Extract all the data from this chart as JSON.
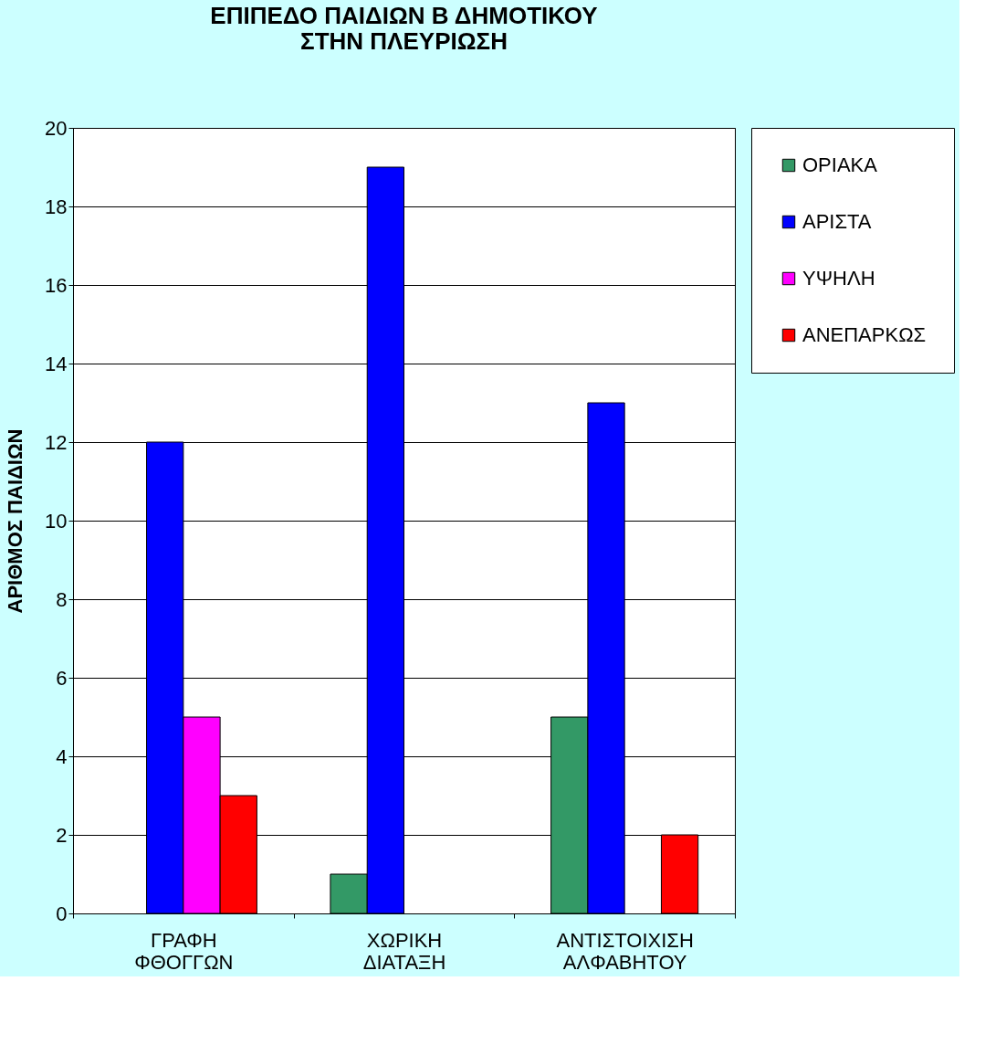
{
  "chart_data": {
    "type": "bar",
    "title": "ΕΠΙΠΕΔΟ ΠΑΙΔΙΩΝ Β ΔΗΜΟΤΙΚΟΥ\nΣΤΗΝ ΠΛΕΥΡΙΩΣΗ",
    "ylabel": "ΑΡΙΘΜΟΣ ΠΑΙΔΙΩΝ",
    "categories": [
      "ΓΡΑΦΗ ΦΘΟΓΓΩΝ",
      "ΧΩΡΙΚΗ ΔΙΑΤΑΞΗ",
      "ΑΝΤΙΣΤΟΙΧΙΣΗ ΑΛΦΑΒΗΤΟΥ"
    ],
    "series": [
      {
        "name": "ΟΡΙΑΚΑ",
        "color": "#339966",
        "values": [
          null,
          1,
          5
        ]
      },
      {
        "name": "ΑΡΙΣΤΑ",
        "color": "#0000ff",
        "values": [
          12,
          19,
          13
        ]
      },
      {
        "name": "ΥΨΗΛΗ",
        "color": "#ff00ff",
        "values": [
          5,
          null,
          null
        ]
      },
      {
        "name": "ΑΝΕΠΑΡΚΩΣ",
        "color": "#ff0000",
        "values": [
          3,
          null,
          2
        ]
      }
    ],
    "ylim": [
      0,
      20
    ],
    "yticks": [
      0,
      2,
      4,
      6,
      8,
      10,
      12,
      14,
      16,
      18,
      20
    ],
    "grid": "y",
    "legend": "right"
  }
}
